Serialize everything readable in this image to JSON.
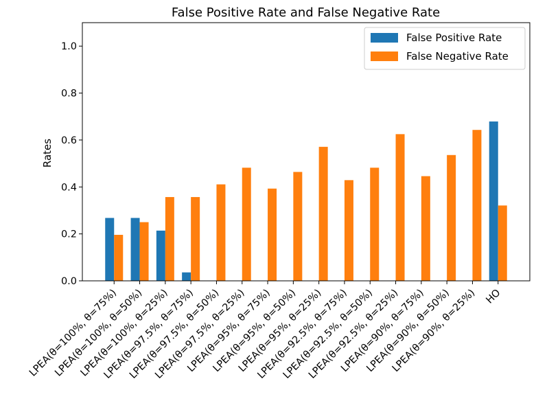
{
  "chart_data": {
    "type": "bar",
    "title": "False Positive Rate and False Negative Rate",
    "xlabel": "",
    "ylabel": "Rates",
    "ylim": [
      0,
      1.1
    ],
    "yticks": [
      "0.0",
      "0.2",
      "0.4",
      "0.6",
      "0.8",
      "1.0"
    ],
    "legend_position": "top-right",
    "categories": [
      "LPEA(θ=100%, θ=75%)",
      "LPEA(θ=100%, θ=50%)",
      "LPEA(θ=100%, θ=25%)",
      "LPEA(θ=97.5%, θ=75%)",
      "LPEA(θ=97.5%, θ=50%)",
      "LPEA(θ=97.5%, θ=25%)",
      "LPEA(θ=95%, θ=75%)",
      "LPEA(θ=95%, θ=50%)",
      "LPEA(θ=95%, θ=25%)",
      "LPEA(θ=92.5%, θ=75%)",
      "LPEA(θ=92.5%, θ=50%)",
      "LPEA(θ=92.5%, θ=25%)",
      "LPEA(θ=90%, θ=75%)",
      "LPEA(θ=90%, θ=50%)",
      "LPEA(θ=90%, θ=25%)",
      "HO"
    ],
    "series": [
      {
        "name": "False Positive Rate",
        "color": "#1f77b4",
        "values": [
          0.268,
          0.268,
          0.214,
          0.036,
          0,
          0,
          0,
          0,
          0,
          0,
          0,
          0,
          0,
          0,
          0,
          0.679
        ]
      },
      {
        "name": "False Negative Rate",
        "color": "#ff7f0e",
        "values": [
          0.196,
          0.25,
          0.357,
          0.357,
          0.411,
          0.482,
          0.393,
          0.464,
          0.571,
          0.429,
          0.482,
          0.625,
          0.446,
          0.536,
          0.643,
          0.321
        ]
      }
    ]
  }
}
